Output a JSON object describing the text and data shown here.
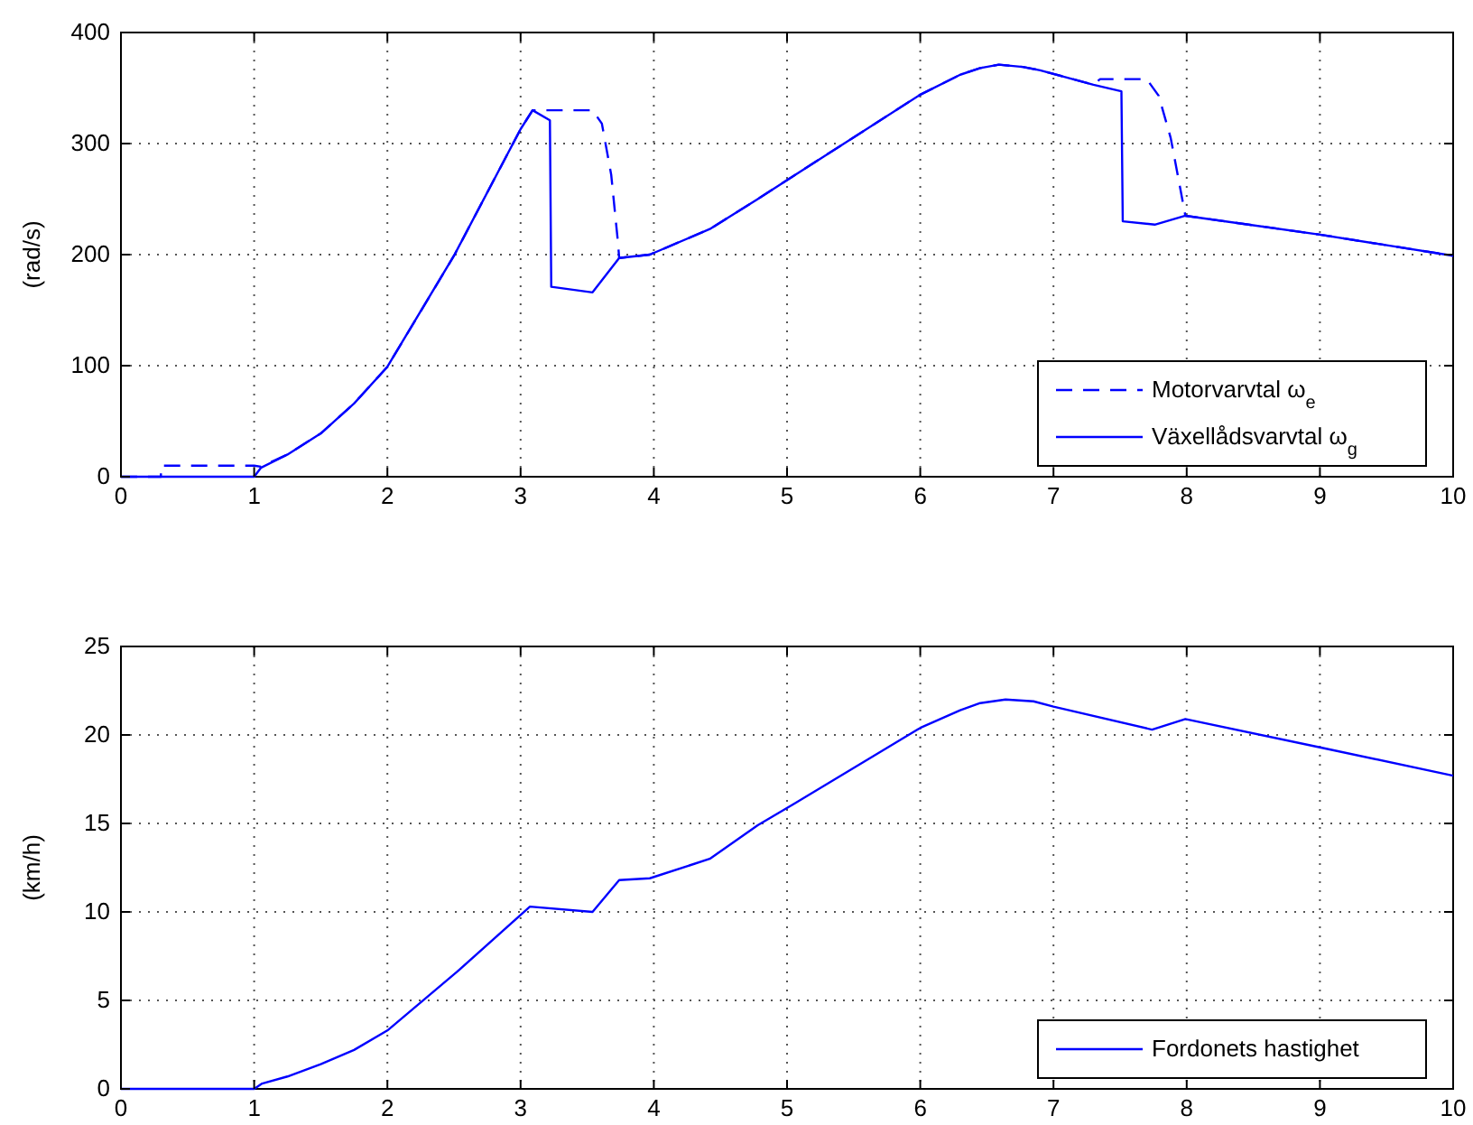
{
  "chart_data": [
    {
      "type": "line",
      "ylabel": "(rad/s)",
      "xlim": [
        0,
        10
      ],
      "ylim": [
        0,
        400
      ],
      "xticks": [
        0,
        1,
        2,
        3,
        4,
        5,
        6,
        7,
        8,
        9,
        10
      ],
      "yticks": [
        0,
        100,
        200,
        300,
        400
      ],
      "grid": true,
      "legend": "bottom right",
      "series": [
        {
          "name": "Motorvarvtal ω$_{e}$",
          "color": "#0000ff",
          "line_style": "dashed",
          "x": [
            0,
            0.3,
            0.3,
            1.0,
            1.05,
            1.25,
            1.5,
            1.75,
            2.0,
            2.5,
            3.0,
            3.09,
            3.54,
            3.61,
            3.68,
            3.73,
            3.74,
            3.97,
            4.42,
            4.78,
            5.05,
            6.0,
            6.3,
            6.45,
            6.59,
            6.77,
            6.9,
            7.3,
            7.35,
            7.7,
            7.79,
            7.88,
            7.94,
            7.99,
            9.0,
            10.0
          ],
          "values": [
            0,
            0,
            10,
            10,
            9,
            20,
            39,
            66,
            99,
            199,
            313,
            330,
            330,
            318,
            272,
            212,
            197,
            200,
            223,
            250,
            271,
            344,
            362,
            368,
            371,
            369,
            366,
            353,
            358,
            358,
            343,
            305,
            267,
            235,
            218,
            199
          ]
        },
        {
          "name": "Växellådsvarvtal ω$_{g}$",
          "color": "#0000ff",
          "line_style": "solid",
          "x": [
            0,
            1.0,
            1.05,
            1.25,
            1.5,
            1.75,
            2.0,
            2.5,
            3.0,
            3.09,
            3.22,
            3.23,
            3.54,
            3.74,
            3.97,
            4.42,
            4.78,
            5.05,
            6.0,
            6.3,
            6.45,
            6.59,
            6.77,
            6.9,
            7.3,
            7.51,
            7.52,
            7.76,
            7.99,
            9.0,
            10.0
          ],
          "values": [
            0,
            0,
            8,
            20,
            39,
            66,
            99,
            199,
            313,
            330,
            321,
            171,
            166,
            197,
            200,
            223,
            250,
            271,
            344,
            362,
            368,
            371,
            369,
            366,
            353,
            347,
            230,
            227,
            235,
            218,
            199
          ]
        }
      ]
    },
    {
      "type": "line",
      "ylabel": "(km/h)",
      "xlim": [
        0,
        10
      ],
      "ylim": [
        0,
        25
      ],
      "xticks": [
        0,
        1,
        2,
        3,
        4,
        5,
        6,
        7,
        8,
        9,
        10
      ],
      "yticks": [
        0,
        5,
        10,
        15,
        20,
        25
      ],
      "grid": true,
      "legend": "bottom right",
      "series": [
        {
          "name": "Fordonets hastighet",
          "color": "#0000ff",
          "line_style": "solid",
          "x": [
            0,
            1.0,
            1.06,
            1.25,
            1.5,
            1.75,
            2.0,
            2.52,
            3.07,
            3.54,
            3.74,
            3.97,
            4.42,
            4.78,
            5.05,
            6.0,
            6.3,
            6.45,
            6.64,
            6.85,
            7.0,
            7.74,
            7.99,
            9.0,
            10.0
          ],
          "values": [
            0,
            0,
            0.3,
            0.7,
            1.4,
            2.2,
            3.3,
            6.6,
            10.3,
            10.0,
            11.8,
            11.9,
            13.0,
            14.9,
            16.1,
            20.4,
            21.4,
            21.8,
            22.0,
            21.9,
            21.6,
            20.3,
            20.9,
            19.3,
            17.7
          ]
        }
      ]
    }
  ]
}
